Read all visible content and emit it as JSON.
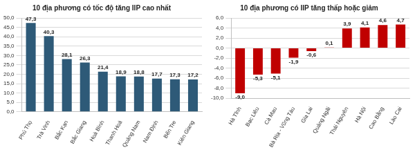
{
  "chart_data": [
    {
      "type": "bar",
      "title": "10 địa phương có tốc độ tăng IIP cao nhất",
      "categories": [
        "Phú Thọ",
        "Trà Vinh",
        "Bắc Kạn",
        "Bắc Giang",
        "Hoà Bình",
        "Thanh Hoá",
        "Quảng Nam",
        "Nam Định",
        "Bến Tre",
        "Kiên Giang"
      ],
      "values": [
        47.3,
        40.3,
        28.1,
        26.3,
        21.4,
        18.9,
        18.8,
        17.7,
        17.3,
        17.2
      ],
      "value_labels": [
        "47,3",
        "40,3",
        "28,1",
        "26,3",
        "21,4",
        "18,9",
        "18,8",
        "17,7",
        "17,3",
        "17,2"
      ],
      "color": "#2e5a78",
      "ylim": [
        0,
        50
      ],
      "yticks": [
        {
          "value": 0,
          "label": "0,0"
        },
        {
          "value": 5,
          "label": "5,0"
        },
        {
          "value": 10,
          "label": "10,0"
        },
        {
          "value": 15,
          "label": "15,0"
        },
        {
          "value": 20,
          "label": "20,0"
        },
        {
          "value": 25,
          "label": "25,0"
        },
        {
          "value": 30,
          "label": "30,0"
        },
        {
          "value": 35,
          "label": "35,0"
        },
        {
          "value": 40,
          "label": "40,0"
        },
        {
          "value": 45,
          "label": "45,0"
        },
        {
          "value": 50,
          "label": "50,0"
        }
      ],
      "grid": true,
      "data_labels": true
    },
    {
      "type": "bar",
      "title": "10 địa phương có IIP tăng thấp hoặc giảm",
      "categories": [
        "Hà Tĩnh",
        "Bạc Liêu",
        "Cà Mau",
        "Bà Rịa - Vũng Tàu",
        "Gia Lai",
        "Quảng Ngãi",
        "Thái Nguyên",
        "Hà Nội",
        "Cao Bằng",
        "Lào Cai"
      ],
      "values": [
        -9.0,
        -5.3,
        -5.1,
        -1.9,
        -0.6,
        0.1,
        3.9,
        4.1,
        4.6,
        4.7
      ],
      "value_labels": [
        "-9,0",
        "-5,3",
        "-5,1",
        "-1,9",
        "-0,6",
        "0,1",
        "3,9",
        "4,1",
        "4,6",
        "4,7"
      ],
      "color": "#c00000",
      "ylim": [
        -10,
        6
      ],
      "yticks": [
        {
          "value": -10,
          "label": "-10,0"
        },
        {
          "value": -8,
          "label": "-8,0"
        },
        {
          "value": -6,
          "label": "-6,0"
        },
        {
          "value": -4,
          "label": "-4,0"
        },
        {
          "value": -2,
          "label": "-2,0"
        },
        {
          "value": 0,
          "label": "0,0"
        },
        {
          "value": 2,
          "label": "2,0"
        },
        {
          "value": 4,
          "label": "4,0"
        },
        {
          "value": 6,
          "label": "6,0"
        }
      ],
      "grid": true,
      "data_labels": true
    }
  ]
}
